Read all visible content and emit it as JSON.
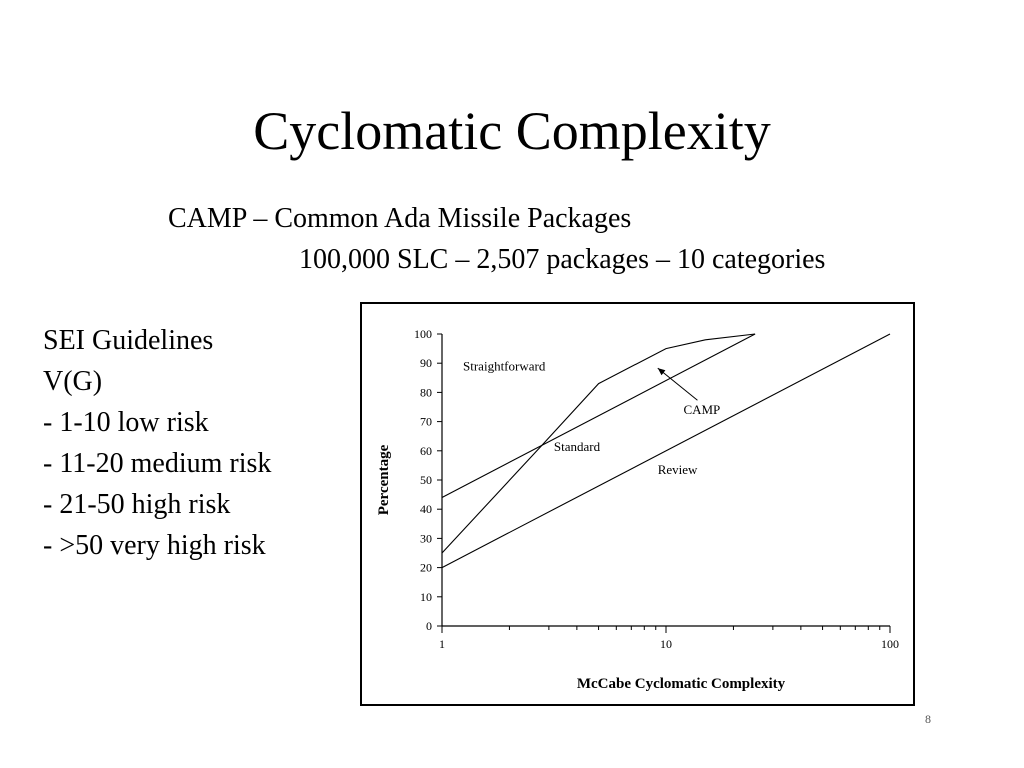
{
  "slide": {
    "title": "Cyclomatic Complexity",
    "subtitle_line1": "CAMP – Common Ada Missile Packages",
    "subtitle_line2": "100,000 SLC – 2,507 packages – 10 categories",
    "guidelines": [
      "SEI Guidelines",
      "V(G)",
      "- 1-10 low risk",
      "- 11-20 medium risk",
      "- 21-50 high risk",
      "- >50 very high risk"
    ],
    "page_number": "8"
  },
  "chart_data": {
    "type": "line",
    "title": "",
    "xlabel": "McCabe Cyclomatic Complexity",
    "ylabel": "Percentage",
    "xscale": "log",
    "xlim": [
      1,
      100
    ],
    "ylim": [
      0,
      100
    ],
    "x_ticks": [
      1,
      10,
      100
    ],
    "x_tick_labels": [
      "1",
      "10",
      "100"
    ],
    "y_ticks": [
      0,
      10,
      20,
      30,
      40,
      50,
      60,
      70,
      80,
      90,
      100
    ],
    "grid": false,
    "series": [
      {
        "name": "CAMP",
        "x": [
          1,
          2.8,
          5,
          10,
          15,
          25
        ],
        "y": [
          25,
          62,
          83,
          95,
          98,
          100
        ]
      },
      {
        "x": [
          1,
          25
        ],
        "y": [
          44,
          100
        ]
      },
      {
        "x": [
          1,
          100
        ],
        "y": [
          20,
          100
        ]
      }
    ],
    "region_labels": [
      "Straightforward",
      "Standard",
      "Review"
    ],
    "annotation": {
      "text": "CAMP",
      "arrow_target": {
        "x": 9,
        "y": 89
      },
      "text_at": {
        "x": 15,
        "y": 78
      }
    }
  }
}
